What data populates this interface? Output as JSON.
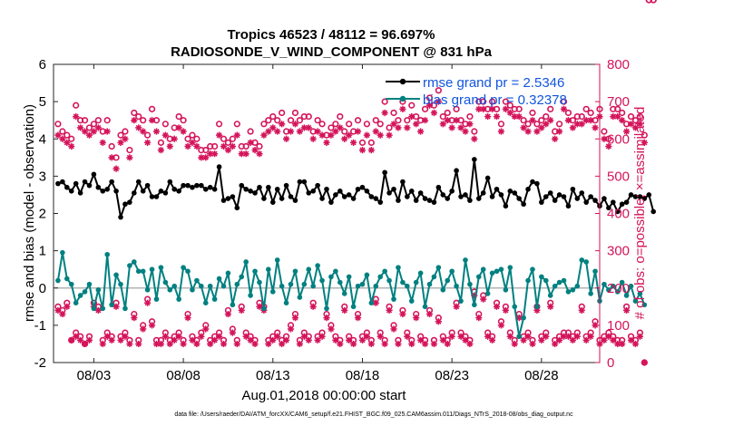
{
  "chart_data": {
    "type": "line",
    "title": "Tropics 46523 / 48112 = 96.697%",
    "subtitle": "RADIOSONDE_V_WIND_COMPONENT @ 831 hPa",
    "xlabel": "Aug.01,2018 00:00:00 start",
    "ylabel_left": "rmse and bias (model - observation)",
    "ylabel_right": "# of obs: o=possible; ×=assimilated",
    "footer": "data file: /Users/raeder/DAI/ATM_forcXX/CAM6_setup/f.e21.FHIST_BGC.f09_025.CAM6assim.011/Diags_NTrS_2018-08/obs_diag_output.nc",
    "x_range_days": [
      0.75,
      31.25
    ],
    "x_ticks": [
      {
        "day": 3,
        "label": "08/03"
      },
      {
        "day": 8,
        "label": "08/08"
      },
      {
        "day": 13,
        "label": "08/13"
      },
      {
        "day": 18,
        "label": "08/18"
      },
      {
        "day": 23,
        "label": "08/23"
      },
      {
        "day": 28,
        "label": "08/28"
      }
    ],
    "ylim_left": [
      -2,
      6
    ],
    "yticks_left": [
      "-2",
      "-1",
      "0",
      "1",
      "2",
      "3",
      "4",
      "5",
      "6"
    ],
    "ylim_right": [
      0,
      800
    ],
    "yticks_right": [
      "0",
      "100",
      "200",
      "300",
      "400",
      "500",
      "600",
      "700",
      "800"
    ],
    "legend": [
      {
        "label": "rmse grand pr = 2.5346",
        "color": "#000000"
      },
      {
        "label": "bias grand pr = 0.32378",
        "color": "#008080"
      }
    ],
    "legend_position": "top-right",
    "colors": {
      "rmse": "#000000",
      "bias": "#008080",
      "obs": "#d4145a",
      "zero_line": "#b3b3b3"
    },
    "rmse_values": [
      2.8,
      2.85,
      2.7,
      2.6,
      2.8,
      2.55,
      2.85,
      2.75,
      3.05,
      2.7,
      2.6,
      2.65,
      2.85,
      2.6,
      1.9,
      2.25,
      2.3,
      2.55,
      2.85,
      2.6,
      2.75,
      2.45,
      2.45,
      2.6,
      2.55,
      2.85,
      2.65,
      2.6,
      2.75,
      2.75,
      2.7,
      2.75,
      2.75,
      2.65,
      2.7,
      2.65,
      3.25,
      2.35,
      2.4,
      2.45,
      2.15,
      2.75,
      2.65,
      2.6,
      2.55,
      2.7,
      2.4,
      2.7,
      2.3,
      2.65,
      2.4,
      2.75,
      2.45,
      2.35,
      2.85,
      2.85,
      2.55,
      2.6,
      2.75,
      2.4,
      2.65,
      2.3,
      2.5,
      2.6,
      2.45,
      2.5,
      2.4,
      2.65,
      2.7,
      2.6,
      2.45,
      2.4,
      2.3,
      3.1,
      2.55,
      2.65,
      2.35,
      2.85,
      2.45,
      2.6,
      2.35,
      2.55,
      2.4,
      2.35,
      2.3,
      2.7,
      2.5,
      2.4,
      2.6,
      3.15,
      2.45,
      2.5,
      2.35,
      3.45,
      2.4,
      2.55,
      2.95,
      2.45,
      2.65,
      2.5,
      2.2,
      2.6,
      2.55,
      2.4,
      2.25,
      2.65,
      2.85,
      2.8,
      2.3,
      2.45,
      2.55,
      2.35,
      2.5,
      2.45,
      2.2,
      2.65,
      2.4,
      2.55,
      2.3,
      2.45,
      2.35,
      2.2,
      2.4,
      2.15,
      2.3,
      2.05,
      2.25,
      2.3,
      2.5,
      2.45,
      2.45,
      2.4,
      2.5,
      2.05
    ],
    "bias_values": [
      0.2,
      0.95,
      0.25,
      0.1,
      -0.4,
      -0.2,
      -0.1,
      0.1,
      -0.55,
      -0.05,
      -0.55,
      0.9,
      -0.45,
      0.35,
      0.1,
      -0.55,
      0.6,
      0.7,
      0.45,
      0.45,
      -0.05,
      0.5,
      -0.3,
      0.55,
      0.15,
      -0.05,
      0.05,
      -0.3,
      0.55,
      0.45,
      -0.05,
      0.2,
      0.05,
      -0.4,
      0.05,
      -0.3,
      0.25,
      0.05,
      0.4,
      -0.45,
      0.1,
      0.3,
      0.7,
      -0.2,
      0.45,
      0.15,
      -0.55,
      0.5,
      -0.1,
      0.75,
      0.05,
      -0.4,
      0.1,
      0.45,
      -0.25,
      0.1,
      0.5,
      0.05,
      0.6,
      0.2,
      -0.55,
      0.3,
      0.45,
      0.15,
      -0.15,
      0.3,
      -0.5,
      0.05,
      0.1,
      0.35,
      -0.4,
      0.05,
      0.3,
      0.45,
      0.2,
      -0.3,
      0.55,
      0.15,
      0.05,
      -0.35,
      0.15,
      0.4,
      -0.5,
      0.1,
      0.3,
      0.55,
      -0.05,
      0.2,
      0.45,
      0.05,
      -0.35,
      0.75,
      0.1,
      -0.45,
      0.3,
      0.5,
      -0.15,
      0.4,
      0.45,
      0.5,
      -0.05,
      0.55,
      -0.5,
      -1.3,
      -0.8,
      0.2,
      0.5,
      -0.5,
      0.3,
      0.2,
      -0.2,
      0.05,
      0.15,
      0.2,
      -0.1,
      -0.05,
      0.05,
      0.75,
      0.7,
      -0.15,
      0.45,
      -0.35,
      0.1,
      -0.05,
      0.05,
      -0.1,
      0.15,
      -0.2,
      0.05,
      -0.35,
      -0.15,
      -0.45
    ],
    "obs_possible": [
      640,
      620,
      610,
      600,
      690,
      650,
      650,
      630,
      640,
      650,
      620,
      650,
      580,
      550,
      610,
      620,
      570,
      670,
      660,
      650,
      610,
      680,
      650,
      590,
      640,
      600,
      630,
      660,
      650,
      600,
      610,
      600,
      570,
      570,
      580,
      580,
      640,
      600,
      590,
      600,
      640,
      580,
      580,
      620,
      590,
      580,
      640,
      650,
      660,
      650,
      670,
      620,
      650,
      670,
      650,
      660,
      660,
      620,
      650,
      640,
      610,
      630,
      640,
      660,
      620,
      640,
      620,
      650,
      590,
      640,
      590,
      650,
      640,
      700,
      630,
      670,
      650,
      700,
      650,
      690,
      660,
      650,
      680,
      710,
      690,
      730,
      660,
      670,
      650,
      680,
      650,
      640,
      660,
      620,
      700,
      700,
      680,
      700,
      680,
      640,
      700,
      690,
      680,
      680,
      650,
      640,
      670,
      640,
      650,
      660,
      680,
      620,
      640,
      700,
      670,
      650,
      660,
      660,
      680,
      670,
      650,
      680,
      620,
      600,
      680,
      680,
      670,
      640,
      660,
      650,
      660,
      610
    ],
    "obs_assimilated": [
      610,
      600,
      590,
      580,
      660,
      630,
      620,
      610,
      620,
      630,
      590,
      620,
      550,
      520,
      590,
      600,
      550,
      650,
      630,
      620,
      590,
      650,
      620,
      570,
      610,
      580,
      600,
      630,
      620,
      580,
      590,
      580,
      550,
      550,
      560,
      560,
      610,
      580,
      570,
      580,
      610,
      560,
      560,
      590,
      570,
      560,
      610,
      620,
      630,
      620,
      640,
      600,
      620,
      640,
      620,
      630,
      630,
      600,
      620,
      610,
      590,
      610,
      620,
      630,
      600,
      610,
      590,
      620,
      570,
      610,
      570,
      620,
      610,
      670,
      610,
      640,
      630,
      680,
      630,
      660,
      640,
      620,
      650,
      690,
      670,
      700,
      640,
      650,
      630,
      650,
      630,
      620,
      640,
      600,
      680,
      680,
      660,
      680,
      660,
      620,
      680,
      670,
      660,
      660,
      630,
      620,
      650,
      620,
      630,
      640,
      650,
      600,
      620,
      680,
      650,
      630,
      640,
      640,
      650,
      650,
      630,
      660,
      600,
      580,
      660,
      660,
      650,
      620,
      640,
      630,
      640,
      590
    ],
    "obs_low_possible": [
      150,
      140,
      160,
      60,
      80,
      70,
      50,
      70,
      160,
      150,
      60,
      80,
      70,
      160,
      70,
      80,
      60,
      130,
      60,
      100,
      170,
      110,
      60,
      60,
      80,
      60,
      70,
      80,
      60,
      130,
      70,
      60,
      80,
      100,
      60,
      70,
      80,
      60,
      140,
      90,
      60,
      150,
      80,
      70,
      60,
      160,
      150,
      60,
      70,
      80,
      60,
      70,
      100,
      130,
      60,
      80,
      70,
      160,
      70,
      80,
      130,
      100,
      70,
      60,
      150,
      70,
      60,
      130,
      70,
      80,
      60,
      170,
      80,
      60,
      150,
      100,
      60,
      140,
      80,
      60,
      130,
      70,
      60,
      140,
      60,
      120,
      70,
      60,
      80,
      160,
      80,
      70,
      60,
      190,
      130,
      180,
      80,
      70,
      160,
      110,
      150,
      80,
      60,
      130,
      70,
      80,
      60,
      150,
      70,
      80,
      160,
      60,
      70,
      80,
      80,
      70,
      80,
      150,
      70,
      80,
      110,
      60,
      70,
      80,
      70,
      60,
      60,
      150,
      70,
      60,
      80,
      0
    ],
    "obs_low_assimilated": [
      140,
      130,
      150,
      60,
      70,
      60,
      50,
      60,
      150,
      140,
      50,
      70,
      60,
      150,
      60,
      70,
      50,
      120,
      50,
      90,
      160,
      100,
      50,
      50,
      70,
      50,
      60,
      70,
      50,
      120,
      60,
      50,
      70,
      90,
      50,
      60,
      70,
      50,
      130,
      80,
      50,
      140,
      70,
      60,
      50,
      150,
      140,
      50,
      60,
      70,
      50,
      60,
      90,
      120,
      50,
      70,
      60,
      150,
      60,
      70,
      120,
      90,
      60,
      50,
      140,
      60,
      50,
      120,
      60,
      70,
      50,
      160,
      70,
      50,
      140,
      90,
      50,
      130,
      70,
      50,
      120,
      60,
      50,
      130,
      50,
      110,
      60,
      50,
      70,
      150,
      70,
      60,
      50,
      180,
      120,
      170,
      70,
      60,
      150,
      100,
      140,
      70,
      50,
      120,
      60,
      70,
      50,
      140,
      60,
      70,
      150,
      50,
      60,
      70,
      70,
      60,
      70,
      140,
      60,
      70,
      100,
      50,
      60,
      70,
      60,
      50,
      50,
      140,
      60,
      50,
      70,
      0
    ]
  }
}
